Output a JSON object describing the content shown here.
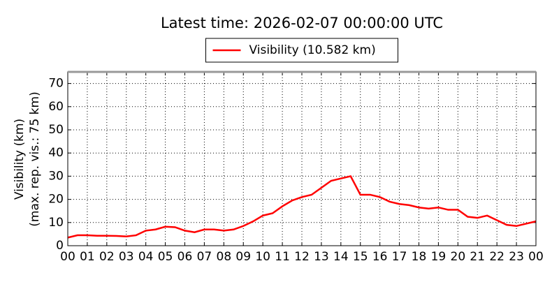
{
  "chart_data": {
    "type": "line",
    "title": "Latest time: 2026-02-07 00:00:00 UTC",
    "ylabel": [
      "Visibility (km)",
      "(max. rep. vis.: 75 km)"
    ],
    "x": [
      0,
      0.5,
      1,
      1.5,
      2,
      2.5,
      3,
      3.5,
      4,
      4.5,
      5,
      5.5,
      6,
      6.5,
      7,
      7.5,
      8,
      8.5,
      9,
      9.5,
      10,
      10.5,
      11,
      11.5,
      12,
      12.5,
      13,
      13.5,
      14,
      14.5,
      15,
      15.5,
      16,
      16.5,
      17,
      17.5,
      18,
      18.5,
      19,
      19.5,
      20,
      20.5,
      21,
      21.5,
      22,
      22.5,
      23,
      23.5,
      24
    ],
    "series": [
      {
        "name": "Visibility (10.582 km)",
        "color": "#ff0000",
        "values": [
          3.5,
          4.5,
          4.5,
          4.3,
          4.3,
          4.2,
          4.0,
          4.5,
          6.5,
          7,
          8.2,
          8,
          6.5,
          5.8,
          7,
          7,
          6.5,
          7,
          8.5,
          10.5,
          13,
          14,
          17,
          19.5,
          21,
          22,
          25,
          28,
          29,
          30,
          22,
          22,
          21,
          19,
          18,
          17.5,
          16.5,
          16,
          16.5,
          15.5,
          15.5,
          12.5,
          12,
          13,
          11,
          9,
          8.5,
          9.5,
          10.5
        ]
      }
    ],
    "xlim": [
      0,
      24
    ],
    "xticks": [
      {
        "value": 0,
        "label": "00"
      },
      {
        "value": 1,
        "label": "01"
      },
      {
        "value": 2,
        "label": "02"
      },
      {
        "value": 3,
        "label": "03"
      },
      {
        "value": 4,
        "label": "04"
      },
      {
        "value": 5,
        "label": "05"
      },
      {
        "value": 6,
        "label": "06"
      },
      {
        "value": 7,
        "label": "07"
      },
      {
        "value": 8,
        "label": "08"
      },
      {
        "value": 9,
        "label": "09"
      },
      10,
      11,
      12,
      13,
      14,
      15,
      16,
      17,
      18,
      19,
      20,
      21,
      22,
      23,
      {
        "value": 24,
        "label": "00"
      }
    ],
    "ylim": [
      0,
      75
    ],
    "yticks": [
      0,
      10,
      20,
      30,
      40,
      50,
      60,
      70
    ],
    "grid": true,
    "legend": "top"
  }
}
